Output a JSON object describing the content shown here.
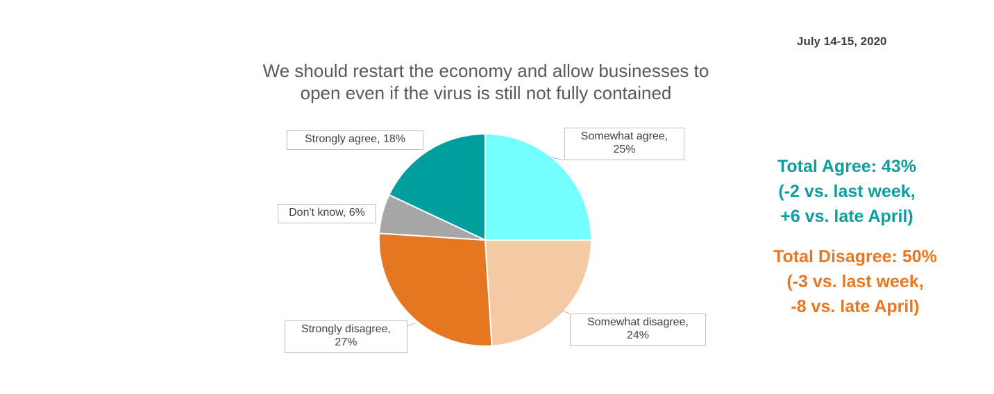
{
  "date": "July 14-15, 2020",
  "title": {
    "line1": "We should restart the economy and allow businesses to",
    "line2": "open even if the virus is still not fully contained"
  },
  "chart_data": {
    "type": "pie",
    "title": "We should restart the economy and allow businesses to open even if the virus is still not fully contained",
    "start": "12 o'clock, clockwise",
    "slices": [
      {
        "label": "Somewhat agree",
        "value": 25,
        "color": "#73FFFF",
        "callout_l1": "Somewhat agree,",
        "callout_l2": "25%"
      },
      {
        "label": "Somewhat disagree",
        "value": 24,
        "color": "#F6C9A5",
        "callout_l1": "Somewhat disagree,",
        "callout_l2": "24%"
      },
      {
        "label": "Strongly disagree",
        "value": 27,
        "color": "#E67722",
        "callout_l1": "Strongly disagree,",
        "callout_l2": "27%"
      },
      {
        "label": "Don't know",
        "value": 6,
        "color": "#A6A6A6",
        "callout_l1": "Don't know, 6%",
        "callout_l2": ""
      },
      {
        "label": "Strongly agree",
        "value": 18,
        "color": "#009E9E",
        "callout_l1": "Strongly agree, 18%",
        "callout_l2": ""
      }
    ]
  },
  "summary": {
    "agree": {
      "color": "#0D9E9E",
      "line1": "Total Agree: 43%",
      "line2": "(-2 vs. last week,",
      "line3": "+6 vs. late April)"
    },
    "disagree": {
      "color": "#E87722",
      "line1": "Total Disagree: 50%",
      "line2": "(-3 vs. last week,",
      "line3": "-8 vs. late April)"
    }
  }
}
